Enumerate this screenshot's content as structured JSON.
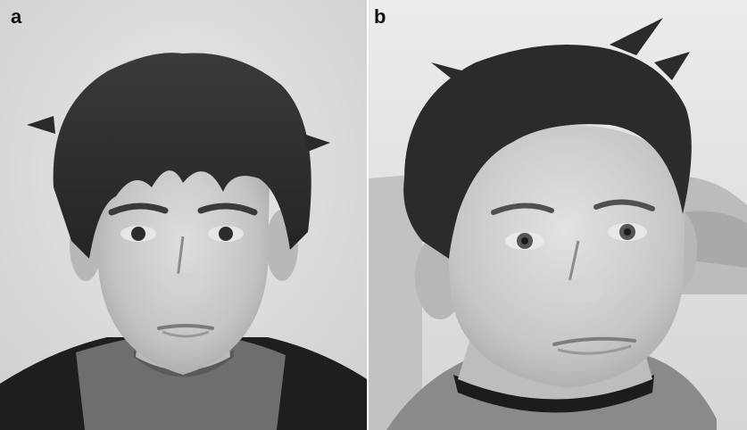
{
  "figure": {
    "panels": [
      {
        "label": "a"
      },
      {
        "label": "b"
      }
    ]
  }
}
